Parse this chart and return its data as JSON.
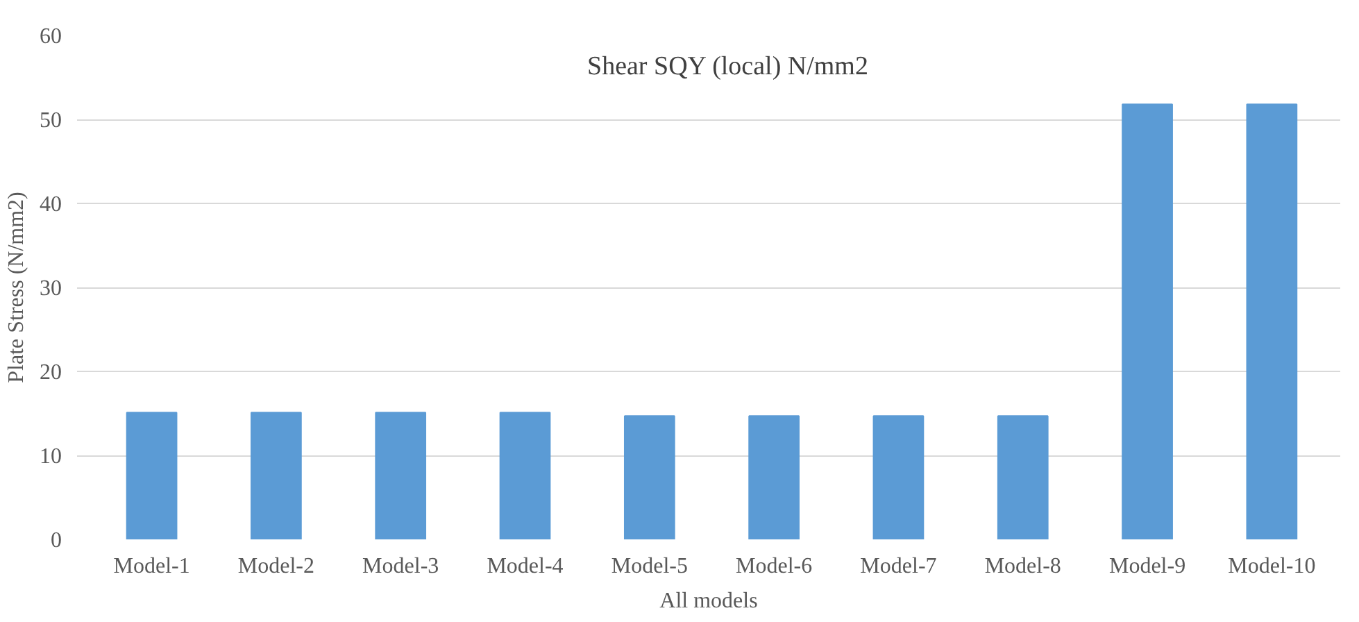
{
  "chart_data": {
    "type": "bar",
    "title": "Shear SQY (local) N/mm2",
    "xlabel": "All models",
    "ylabel": "Plate Stress (N/mm2)",
    "categories": [
      "Model-1",
      "Model-2",
      "Model-3",
      "Model-4",
      "Model-5",
      "Model-6",
      "Model-7",
      "Model-8",
      "Model-9",
      "Model-10"
    ],
    "values": [
      15.1,
      15.1,
      15.1,
      15.1,
      14.7,
      14.7,
      14.7,
      14.7,
      51.8,
      51.8
    ],
    "color": "#5b9bd5",
    "ylim": [
      0,
      60
    ],
    "yticks": [
      0,
      10,
      20,
      30,
      40,
      50,
      60
    ],
    "grid": "y"
  }
}
